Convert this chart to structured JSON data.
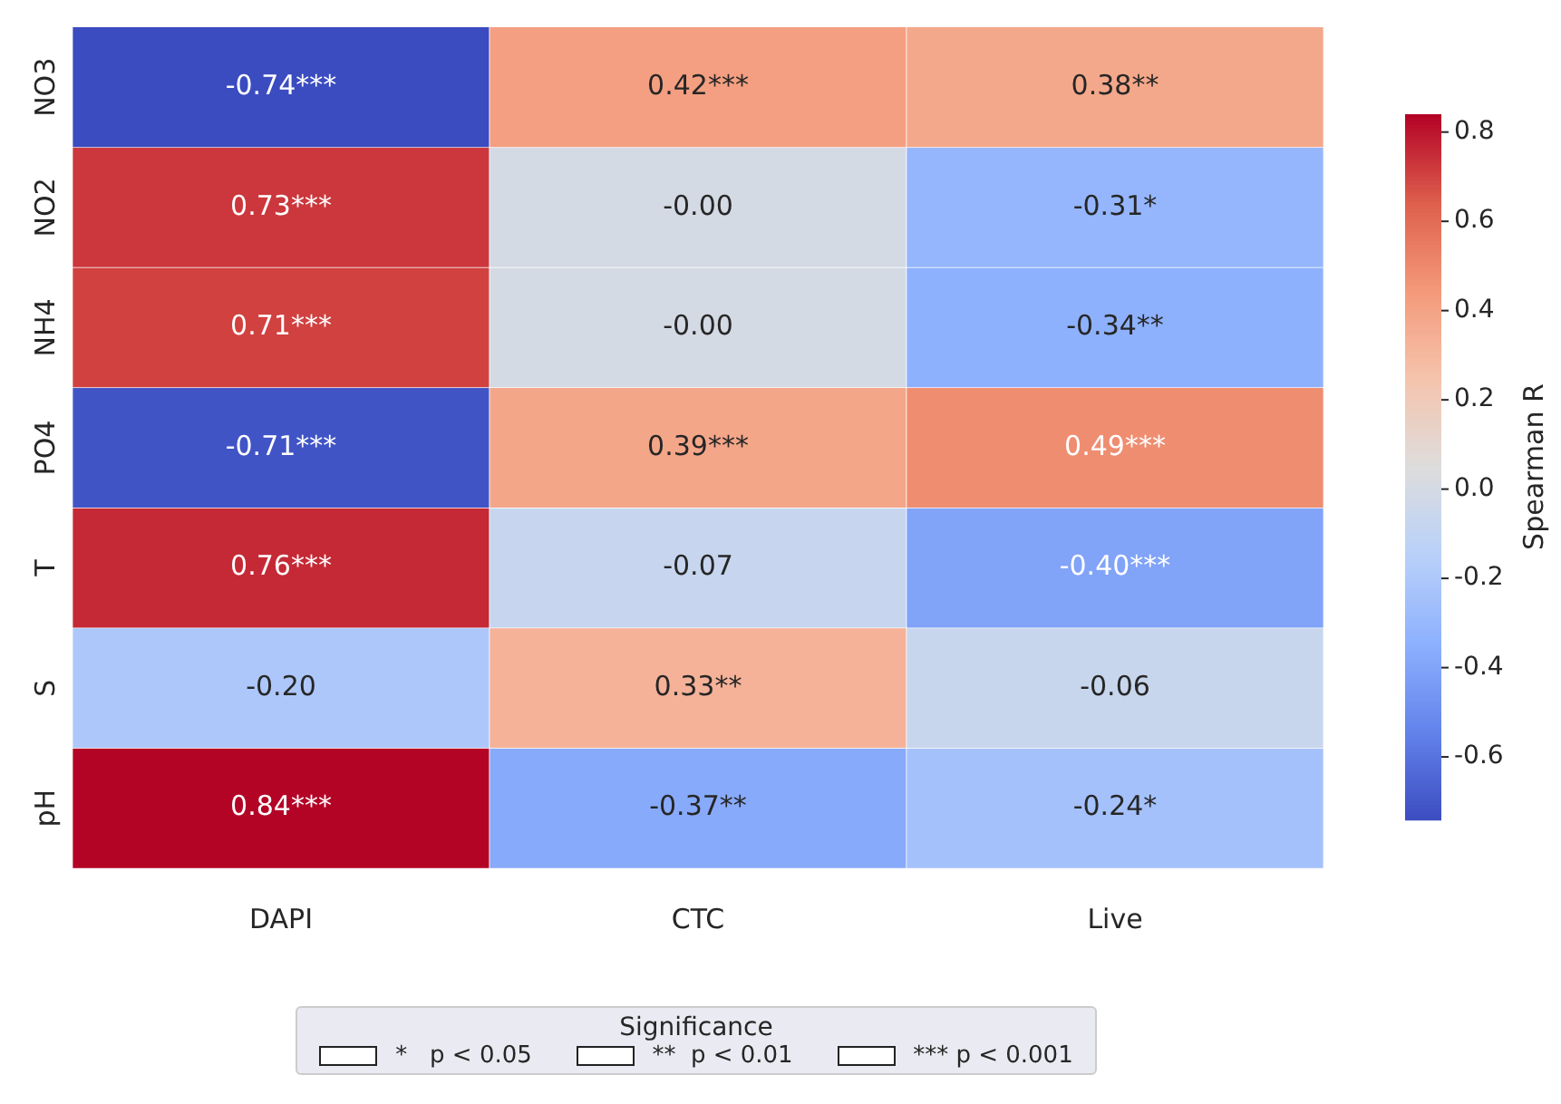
{
  "chart_data": {
    "type": "heatmap",
    "categories": [
      "DAPI",
      "CTC",
      "Live"
    ],
    "y_categories": [
      "NO3",
      "NO2",
      "NH4",
      "PO4",
      "T",
      "S",
      "pH"
    ],
    "cells": [
      [
        -0.74,
        0.42,
        0.38
      ],
      [
        0.73,
        0,
        -0.31
      ],
      [
        0.71,
        0,
        -0.34
      ],
      [
        -0.71,
        0.39,
        0.49
      ],
      [
        0.76,
        -0.07,
        -0.4
      ],
      [
        -0.2,
        0.33,
        -0.06
      ],
      [
        0.84,
        -0.37,
        -0.24
      ]
    ],
    "cell_labels": [
      [
        "-0.74***",
        "0.42***",
        "0.38**"
      ],
      [
        "0.73***",
        "-0.00",
        "-0.31*"
      ],
      [
        "0.71***",
        "-0.00",
        "-0.34**"
      ],
      [
        "-0.71***",
        "0.39***",
        "0.49***"
      ],
      [
        "0.76***",
        "-0.07",
        "-0.40***"
      ],
      [
        "-0.20",
        "0.33**",
        "-0.06"
      ],
      [
        "0.84***",
        "-0.37**",
        "-0.24*"
      ]
    ],
    "clim": [
      -0.74,
      0.84
    ],
    "cticks": [
      -0.6,
      -0.4,
      -0.2,
      {
        "value": 0,
        "label": "0.0"
      },
      0.2,
      0.4,
      0.6,
      0.8
    ],
    "clabel": "Spearman R",
    "legend_title": "Significance",
    "annotations": [
      "*   p < 0.05",
      "**  p < 0.01",
      "*** p < 0.001"
    ]
  }
}
